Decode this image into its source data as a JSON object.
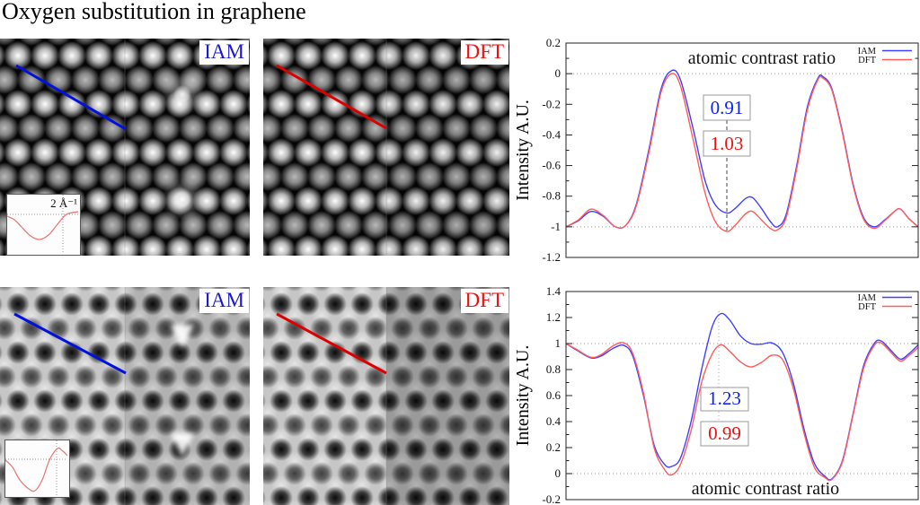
{
  "title": "Oxygen substitution in graphene",
  "panels": [
    {
      "label": "IAM",
      "label_color": "#1a1acc",
      "line_color": "#0010dd",
      "mode": "adf",
      "has_inset": true,
      "inset_label": "2 Å⁻¹"
    },
    {
      "label": "DFT",
      "label_color": "#ee1111",
      "line_color": "#dd0000",
      "mode": "adf",
      "has_inset": false
    },
    {
      "label": "IAM",
      "label_color": "#1a1acc",
      "line_color": "#0010dd",
      "mode": "bf",
      "has_inset": true
    },
    {
      "label": "DFT",
      "label_color": "#ee1111",
      "line_color": "#dd0000",
      "mode": "bf",
      "has_inset": false
    }
  ],
  "chart_data": [
    {
      "type": "line",
      "title": "atomic contrast ratio",
      "title_position": "top",
      "ylabel": "Intensity A.U.",
      "xlabel": "",
      "ylim": [
        -1.2,
        0.2
      ],
      "ytick_labels": [
        "0.2",
        "0",
        "-0.2",
        "-0.4",
        "-0.6",
        "-0.8",
        "-1",
        "-1.2"
      ],
      "minor_tick_step": 0.1,
      "grid_y": [
        0,
        -1
      ],
      "legend_position": "top-right",
      "legend": [
        {
          "name": "IAM",
          "color": "#3f3fff"
        },
        {
          "name": "DFT",
          "color": "#ff5c5c"
        }
      ],
      "annotations": [
        {
          "text": "0.91",
          "color": "#1122ee"
        },
        {
          "text": "1.03",
          "color": "#ee1111"
        }
      ],
      "marker_x": 0.457,
      "series": [
        {
          "name": "IAM",
          "color": "#3f3fff",
          "points": [
            [
              0,
              -1.0
            ],
            [
              0.035,
              -0.96
            ],
            [
              0.07,
              -0.9
            ],
            [
              0.105,
              -0.93
            ],
            [
              0.14,
              -1.0
            ],
            [
              0.17,
              -0.99
            ],
            [
              0.2,
              -0.85
            ],
            [
              0.235,
              -0.5
            ],
            [
              0.27,
              -0.1
            ],
            [
              0.3,
              0.02
            ],
            [
              0.325,
              -0.04
            ],
            [
              0.36,
              -0.35
            ],
            [
              0.395,
              -0.7
            ],
            [
              0.425,
              -0.86
            ],
            [
              0.457,
              -0.91
            ],
            [
              0.48,
              -0.88
            ],
            [
              0.51,
              -0.815
            ],
            [
              0.53,
              -0.81
            ],
            [
              0.555,
              -0.88
            ],
            [
              0.58,
              -0.965
            ],
            [
              0.6,
              -1.0
            ],
            [
              0.625,
              -0.92
            ],
            [
              0.655,
              -0.6
            ],
            [
              0.685,
              -0.22
            ],
            [
              0.715,
              -0.03
            ],
            [
              0.73,
              -0.02
            ],
            [
              0.755,
              -0.1
            ],
            [
              0.785,
              -0.38
            ],
            [
              0.815,
              -0.72
            ],
            [
              0.845,
              -0.94
            ],
            [
              0.875,
              -1.0
            ],
            [
              0.905,
              -0.955
            ],
            [
              0.935,
              -0.895
            ],
            [
              0.95,
              -0.885
            ],
            [
              0.975,
              -0.95
            ],
            [
              1,
              -1.0
            ]
          ]
        },
        {
          "name": "DFT",
          "color": "#ff5c5c",
          "points": [
            [
              0,
              -1.0
            ],
            [
              0.035,
              -0.955
            ],
            [
              0.07,
              -0.885
            ],
            [
              0.105,
              -0.925
            ],
            [
              0.14,
              -1.0
            ],
            [
              0.17,
              -0.99
            ],
            [
              0.2,
              -0.86
            ],
            [
              0.235,
              -0.52
            ],
            [
              0.27,
              -0.12
            ],
            [
              0.3,
              0.0
            ],
            [
              0.325,
              -0.08
            ],
            [
              0.36,
              -0.42
            ],
            [
              0.395,
              -0.78
            ],
            [
              0.425,
              -0.97
            ],
            [
              0.457,
              -1.03
            ],
            [
              0.48,
              -0.99
            ],
            [
              0.51,
              -0.915
            ],
            [
              0.53,
              -0.9
            ],
            [
              0.555,
              -0.955
            ],
            [
              0.58,
              -1.01
            ],
            [
              0.6,
              -1.02
            ],
            [
              0.625,
              -0.94
            ],
            [
              0.655,
              -0.62
            ],
            [
              0.685,
              -0.24
            ],
            [
              0.715,
              -0.04
            ],
            [
              0.73,
              -0.03
            ],
            [
              0.755,
              -0.11
            ],
            [
              0.785,
              -0.39
            ],
            [
              0.815,
              -0.73
            ],
            [
              0.845,
              -0.95
            ],
            [
              0.875,
              -1.01
            ],
            [
              0.905,
              -0.96
            ],
            [
              0.935,
              -0.895
            ],
            [
              0.95,
              -0.885
            ],
            [
              0.975,
              -0.95
            ],
            [
              1,
              -1.0
            ]
          ]
        }
      ]
    },
    {
      "type": "line",
      "title": "atomic contrast ratio",
      "title_position": "bottom",
      "ylabel": "Intensity A.U.",
      "xlabel": "",
      "ylim": [
        -0.2,
        1.4
      ],
      "ytick_labels": [
        "1.4",
        "1.2",
        "1",
        "0.8",
        "0.6",
        "0.4",
        "0.2",
        "0",
        "-0.2"
      ],
      "minor_tick_step": 0.1,
      "grid_y": [
        1,
        0
      ],
      "legend_position": "top-right",
      "legend": [
        {
          "name": "IAM",
          "color": "#3f3fff"
        },
        {
          "name": "DFT",
          "color": "#ff5c5c"
        }
      ],
      "annotations": [
        {
          "text": "1.23",
          "color": "#1122ee"
        },
        {
          "text": "0.99",
          "color": "#ee1111"
        }
      ],
      "marker_x": 0.434,
      "series": [
        {
          "name": "IAM",
          "color": "#3f3fff",
          "points": [
            [
              0,
              1.0
            ],
            [
              0.03,
              0.95
            ],
            [
              0.07,
              0.89
            ],
            [
              0.1,
              0.905
            ],
            [
              0.135,
              0.965
            ],
            [
              0.165,
              0.985
            ],
            [
              0.19,
              0.9
            ],
            [
              0.22,
              0.6
            ],
            [
              0.25,
              0.22
            ],
            [
              0.28,
              0.07
            ],
            [
              0.3,
              0.055
            ],
            [
              0.325,
              0.12
            ],
            [
              0.355,
              0.4
            ],
            [
              0.385,
              0.8
            ],
            [
              0.415,
              1.13
            ],
            [
              0.44,
              1.23
            ],
            [
              0.465,
              1.18
            ],
            [
              0.495,
              1.06
            ],
            [
              0.525,
              1.0
            ],
            [
              0.555,
              0.995
            ],
            [
              0.585,
              1.005
            ],
            [
              0.615,
              0.93
            ],
            [
              0.645,
              0.7
            ],
            [
              0.675,
              0.35
            ],
            [
              0.705,
              0.08
            ],
            [
              0.735,
              -0.02
            ],
            [
              0.755,
              -0.04
            ],
            [
              0.785,
              0.1
            ],
            [
              0.815,
              0.46
            ],
            [
              0.845,
              0.83
            ],
            [
              0.875,
              1.0
            ],
            [
              0.895,
              1.02
            ],
            [
              0.925,
              0.94
            ],
            [
              0.95,
              0.88
            ],
            [
              0.975,
              0.925
            ],
            [
              1,
              0.99
            ]
          ]
        },
        {
          "name": "DFT",
          "color": "#ff5c5c",
          "points": [
            [
              0,
              1.0
            ],
            [
              0.03,
              0.955
            ],
            [
              0.07,
              0.895
            ],
            [
              0.1,
              0.915
            ],
            [
              0.135,
              0.985
            ],
            [
              0.165,
              1.005
            ],
            [
              0.19,
              0.92
            ],
            [
              0.22,
              0.62
            ],
            [
              0.25,
              0.2
            ],
            [
              0.28,
              0.03
            ],
            [
              0.3,
              -0.01
            ],
            [
              0.325,
              0.07
            ],
            [
              0.355,
              0.33
            ],
            [
              0.385,
              0.7
            ],
            [
              0.415,
              0.92
            ],
            [
              0.44,
              0.99
            ],
            [
              0.465,
              0.94
            ],
            [
              0.495,
              0.86
            ],
            [
              0.525,
              0.82
            ],
            [
              0.555,
              0.855
            ],
            [
              0.585,
              0.91
            ],
            [
              0.615,
              0.875
            ],
            [
              0.645,
              0.66
            ],
            [
              0.675,
              0.32
            ],
            [
              0.705,
              0.05
            ],
            [
              0.735,
              -0.03
            ],
            [
              0.755,
              -0.045
            ],
            [
              0.785,
              0.09
            ],
            [
              0.815,
              0.45
            ],
            [
              0.845,
              0.81
            ],
            [
              0.875,
              0.985
            ],
            [
              0.895,
              1.005
            ],
            [
              0.925,
              0.925
            ],
            [
              0.95,
              0.865
            ],
            [
              0.975,
              0.91
            ],
            [
              1,
              0.97
            ]
          ]
        }
      ]
    }
  ]
}
